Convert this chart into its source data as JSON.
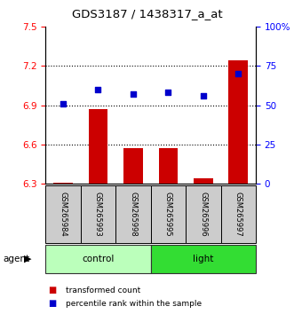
{
  "title": "GDS3187 / 1438317_a_at",
  "samples": [
    "GSM265984",
    "GSM265993",
    "GSM265998",
    "GSM265995",
    "GSM265996",
    "GSM265997"
  ],
  "bar_values": [
    6.31,
    6.87,
    6.57,
    6.57,
    6.34,
    7.24
  ],
  "dot_values": [
    51,
    60,
    57,
    58,
    56,
    70
  ],
  "ylim_left": [
    6.3,
    7.5
  ],
  "ylim_right": [
    0,
    100
  ],
  "yticks_left": [
    6.3,
    6.6,
    6.9,
    7.2,
    7.5
  ],
  "yticks_right": [
    0,
    25,
    50,
    75,
    100
  ],
  "bar_color": "#cc0000",
  "dot_color": "#0000cc",
  "bar_bottom": 6.3,
  "groups": [
    {
      "label": "control",
      "start": 0,
      "end": 3,
      "color": "#bbffbb"
    },
    {
      "label": "light",
      "start": 3,
      "end": 6,
      "color": "#33dd33"
    }
  ],
  "agent_label": "agent",
  "legend_items": [
    {
      "label": "transformed count",
      "color": "#cc0000"
    },
    {
      "label": "percentile rank within the sample",
      "color": "#0000cc"
    }
  ]
}
